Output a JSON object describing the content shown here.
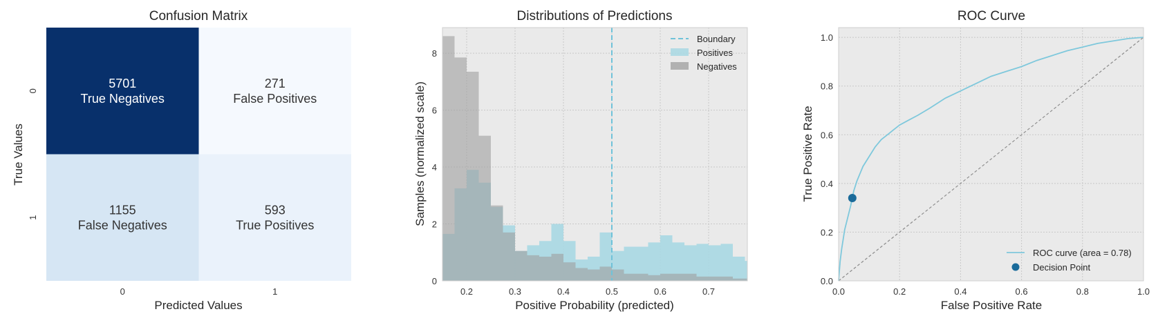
{
  "chart_data": [
    {
      "type": "heatmap",
      "title": "Confusion Matrix",
      "xlabel": "Predicted Values",
      "ylabel": "True Values",
      "x_ticks": [
        "0",
        "1"
      ],
      "y_ticks": [
        "0",
        "1"
      ],
      "cells": [
        {
          "row": 0,
          "col": 0,
          "count": "5701",
          "label": "True Negatives",
          "color": "#08306b",
          "text_color": "#ffffff"
        },
        {
          "row": 0,
          "col": 1,
          "count": "271",
          "label": "False Positives",
          "color": "#f5f9fe",
          "text_color": "#333333"
        },
        {
          "row": 1,
          "col": 0,
          "count": "1155",
          "label": "False Negatives",
          "color": "#d6e6f4",
          "text_color": "#333333"
        },
        {
          "row": 1,
          "col": 1,
          "count": "593",
          "label": "True Positives",
          "color": "#eaf2fb",
          "text_color": "#333333"
        }
      ]
    },
    {
      "type": "bar",
      "title": "Distributions of Predictions",
      "xlabel": "Positive Probability (predicted)",
      "ylabel": "Samples (normalized scale)",
      "xlim": [
        0.15,
        0.78
      ],
      "ylim": [
        0,
        8.9
      ],
      "x_ticks": [
        0.2,
        0.3,
        0.4,
        0.5,
        0.6,
        0.7
      ],
      "x_tick_labels": [
        "0.2",
        "0.3",
        "0.4",
        "0.5",
        "0.6",
        "0.7"
      ],
      "y_ticks": [
        0,
        2,
        4,
        6,
        8
      ],
      "y_tick_labels": [
        "0",
        "2",
        "4",
        "6",
        "8"
      ],
      "boundary": 0.5,
      "legend_position": "top-right",
      "legend": {
        "boundary": "Boundary",
        "positives": "Positives",
        "negatives": "Negatives"
      },
      "colors": {
        "positives": "#a8d8e3",
        "negatives": "#9e9e9e",
        "boundary": "#6fc2d9"
      },
      "bin_edges": [
        0.15,
        0.175,
        0.2,
        0.225,
        0.25,
        0.275,
        0.3,
        0.325,
        0.35,
        0.375,
        0.4,
        0.425,
        0.45,
        0.475,
        0.5,
        0.525,
        0.55,
        0.575,
        0.6,
        0.625,
        0.65,
        0.675,
        0.7,
        0.725,
        0.75,
        0.775,
        0.8
      ],
      "series": [
        {
          "name": "Positives",
          "values": [
            1.65,
            3.25,
            3.9,
            3.45,
            2.6,
            1.95,
            1.05,
            1.25,
            1.4,
            2.0,
            1.4,
            0.75,
            0.85,
            1.7,
            1.05,
            1.2,
            1.2,
            1.35,
            1.6,
            1.35,
            1.25,
            1.3,
            1.25,
            1.3,
            0.85,
            0.7
          ]
        },
        {
          "name": "Negatives",
          "values": [
            8.6,
            7.85,
            7.35,
            5.1,
            2.65,
            1.7,
            1.05,
            0.9,
            0.85,
            0.95,
            0.65,
            0.45,
            0.4,
            0.5,
            0.4,
            0.25,
            0.25,
            0.2,
            0.25,
            0.25,
            0.25,
            0.15,
            0.15,
            0.15,
            0.08,
            0.08
          ]
        }
      ]
    },
    {
      "type": "line",
      "title": "ROC Curve",
      "xlabel": "False Positive Rate",
      "ylabel": "True Positive Rate",
      "xlim": [
        0,
        1
      ],
      "ylim": [
        0,
        1.04
      ],
      "x_ticks": [
        0,
        0.2,
        0.4,
        0.6,
        0.8,
        1.0
      ],
      "x_tick_labels": [
        "0.0",
        "0.2",
        "0.4",
        "0.6",
        "0.8",
        "1.0"
      ],
      "y_ticks": [
        0,
        0.2,
        0.4,
        0.6,
        0.8,
        1.0
      ],
      "y_tick_labels": [
        "0.0",
        "0.2",
        "0.4",
        "0.6",
        "0.8",
        "1.0"
      ],
      "legend_position": "lower-right",
      "legend": {
        "roc": "ROC curve (area = 0.78)",
        "point": "Decision Point"
      },
      "colors": {
        "roc": "#7ec8dc",
        "point": "#1a6b9a",
        "diagonal": "#8c8c8c"
      },
      "roc": {
        "x": [
          0,
          0.005,
          0.01,
          0.015,
          0.02,
          0.03,
          0.04,
          0.045,
          0.05,
          0.06,
          0.07,
          0.08,
          0.1,
          0.12,
          0.14,
          0.16,
          0.18,
          0.2,
          0.23,
          0.26,
          0.3,
          0.35,
          0.4,
          0.45,
          0.5,
          0.55,
          0.6,
          0.65,
          0.7,
          0.75,
          0.8,
          0.85,
          0.9,
          0.95,
          1.0
        ],
        "y": [
          0,
          0.08,
          0.13,
          0.17,
          0.21,
          0.26,
          0.31,
          0.34,
          0.37,
          0.41,
          0.44,
          0.47,
          0.51,
          0.55,
          0.58,
          0.6,
          0.62,
          0.64,
          0.66,
          0.68,
          0.71,
          0.75,
          0.78,
          0.81,
          0.84,
          0.86,
          0.88,
          0.905,
          0.925,
          0.945,
          0.96,
          0.975,
          0.985,
          0.995,
          1.0
        ]
      },
      "decision_point": {
        "x": 0.045,
        "y": 0.34
      },
      "diagonal": {
        "x": [
          0,
          1
        ],
        "y": [
          0,
          1
        ]
      }
    }
  ]
}
